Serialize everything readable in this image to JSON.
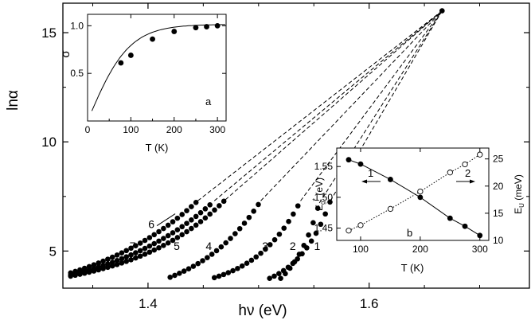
{
  "chart_data": [
    {
      "id": "main",
      "type": "scatter",
      "xlabel": "hν (eV)",
      "ylabel": "lnα",
      "xlim": [
        1.323,
        1.745
      ],
      "ylim": [
        3.3,
        16.35
      ],
      "xticks": [
        1.4,
        1.6
      ],
      "yticks": [
        5,
        10,
        15
      ],
      "x_minor_step": 0.05,
      "y_minor_step": 2.5,
      "convergence_point": [
        1.666,
        16.0
      ],
      "series": [
        {
          "label": "1",
          "x_min": 1.51,
          "x_max": 1.565,
          "y_end": 7.3,
          "edge": 0.03,
          "base": 3.75
        },
        {
          "label": "2",
          "x_min": 1.52,
          "x_max": 1.555,
          "y_end": 7.2,
          "edge": 0.026,
          "base": 3.75
        },
        {
          "label": "3",
          "x_min": 1.46,
          "x_max": 1.538,
          "y_end": 7.3,
          "edge": 0.042,
          "base": 3.78
        },
        {
          "label": "4",
          "x_min": 1.42,
          "x_max": 1.502,
          "y_end": 7.3,
          "edge": 0.06,
          "base": 3.8
        },
        {
          "label": "5",
          "x_min": 1.33,
          "x_max": 1.47,
          "y_end": 7.35,
          "edge": 0.085,
          "base": 3.85
        },
        {
          "label": "6",
          "x_min": 1.33,
          "x_max": 1.46,
          "y_end": 7.3,
          "edge": 0.1,
          "base": 3.9
        },
        {
          "label": "7",
          "x_min": 1.33,
          "x_max": 1.445,
          "y_end": 7.3,
          "edge": 0.105,
          "base": 4.0
        }
      ],
      "series_labels": [
        {
          "text": "1",
          "x": 1.553,
          "y": 5.05
        },
        {
          "text": "2",
          "x": 1.531,
          "y": 5.05
        },
        {
          "text": "3",
          "x": 1.506,
          "y": 5.05
        },
        {
          "text": "4",
          "x": 1.455,
          "y": 5.05
        },
        {
          "text": "5",
          "x": 1.426,
          "y": 5.05
        },
        {
          "text": "6",
          "x": 1.403,
          "y": 6.05
        },
        {
          "text": "7",
          "x": 1.386,
          "y": 5.05
        }
      ]
    },
    {
      "id": "inset-a",
      "type": "scatter",
      "panel_label": "a",
      "xlabel": "T (K)",
      "ylabel": "σ",
      "xlim": [
        0,
        320
      ],
      "ylim": [
        0,
        1.12
      ],
      "xticks": [
        0,
        100,
        200,
        300
      ],
      "yticks": [
        0.5,
        1.0
      ],
      "ytick_labels": [
        "0.5",
        "1.0"
      ],
      "points": [
        {
          "x": 77,
          "y": 0.61
        },
        {
          "x": 100,
          "y": 0.69
        },
        {
          "x": 150,
          "y": 0.86
        },
        {
          "x": 200,
          "y": 0.94
        },
        {
          "x": 250,
          "y": 0.98
        },
        {
          "x": 275,
          "y": 0.99
        },
        {
          "x": 300,
          "y": 1.0
        }
      ],
      "curve_scale": 0.0105
    },
    {
      "id": "inset-b",
      "type": "scatter",
      "panel_label": "b",
      "xlabel": "T (K)",
      "ylabel": "E*g (eV)",
      "y2label": "EU (meV)",
      "xlim": [
        60,
        315
      ],
      "ylim": [
        1.43,
        1.58
      ],
      "y2lim": [
        10,
        27
      ],
      "xticks": [
        100,
        200,
        300
      ],
      "yticks": [
        1.45,
        1.5,
        1.55
      ],
      "ytick_labels": [
        "1.45",
        "1.50",
        "1.55"
      ],
      "y2ticks": [
        10,
        15,
        20,
        25
      ],
      "series": [
        {
          "name": "1",
          "axis": "left",
          "marker": "filled",
          "x": [
            80,
            100,
            150,
            200,
            250,
            275,
            300
          ],
          "y": [
            1.561,
            1.554,
            1.529,
            1.5,
            1.466,
            1.453,
            1.438
          ]
        },
        {
          "name": "2",
          "axis": "right",
          "marker": "open",
          "x": [
            80,
            100,
            150,
            200,
            250,
            275,
            300
          ],
          "y": [
            11.8,
            12.8,
            15.8,
            19.0,
            22.5,
            24.0,
            25.8
          ]
        }
      ]
    }
  ]
}
